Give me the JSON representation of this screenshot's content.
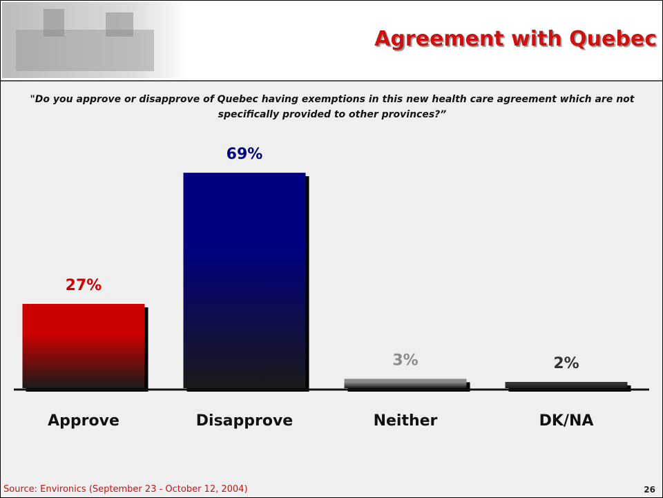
{
  "chart_data": {
    "type": "bar",
    "title": "Agreement with Quebec",
    "subtitle": "\"Do you approve or disapprove of Quebec having exemptions in this new health care agreement which are not specifically provided to other provinces?”",
    "categories": [
      "Approve",
      "Disapprove",
      "Neither",
      "DK/NA"
    ],
    "values": [
      27,
      69,
      3,
      2
    ],
    "value_labels": [
      "27%",
      "69%",
      "3%",
      "2%"
    ],
    "colors": [
      "#cc0000",
      "#000080",
      "#8c8c8c",
      "#333333"
    ],
    "source": "Source: Environics (September 23 - October 12, 2004)",
    "page_number": "26"
  }
}
